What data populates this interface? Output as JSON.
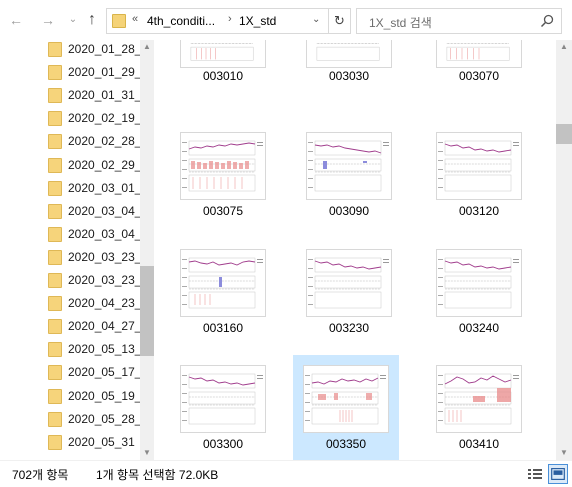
{
  "address_bar": {
    "back_icon": "arrow-left-icon",
    "forward_icon": "arrow-right-icon",
    "up_icon": "arrow-up-icon",
    "overflow": "«",
    "path": [
      "4th_conditi...",
      "1X_std"
    ],
    "separator": "›",
    "search_placeholder": "1X_std 검색"
  },
  "nav_pane": {
    "folders": [
      "2020_01_28_",
      "2020_01_29_",
      "2020_01_31_",
      "2020_02_19_",
      "2020_02_28_",
      "2020_02_29_",
      "2020_03_01_",
      "2020_03_04_",
      "2020_03_04_",
      "2020_03_23_",
      "2020_03_23_",
      "2020_04_23_",
      "2020_04_27_",
      "2020_05_13_",
      "2020_05_17_",
      "2020_05_19_",
      "2020_05_28_",
      "2020_05_31"
    ]
  },
  "files": [
    {
      "name": "003010",
      "variant": "partial",
      "selected": false
    },
    {
      "name": "003030",
      "variant": "partial",
      "selected": false
    },
    {
      "name": "003070",
      "variant": "partial",
      "selected": false
    },
    {
      "name": "003075",
      "variant": "a",
      "selected": false
    },
    {
      "name": "003090",
      "variant": "b",
      "selected": false
    },
    {
      "name": "003120",
      "variant": "c",
      "selected": false
    },
    {
      "name": "003160",
      "variant": "d",
      "selected": false
    },
    {
      "name": "003230",
      "variant": "c",
      "selected": false
    },
    {
      "name": "003240",
      "variant": "c",
      "selected": false
    },
    {
      "name": "003300",
      "variant": "c",
      "selected": false
    },
    {
      "name": "003350",
      "variant": "e",
      "selected": true
    },
    {
      "name": "003410",
      "variant": "f",
      "selected": false
    }
  ],
  "status_bar": {
    "item_count": "702개 항목",
    "selection": "1개 항목 선택함 72.0KB"
  },
  "colors": {
    "folder": "#f6d47b",
    "selection": "#cce8ff",
    "chart_line": "#a03c8c",
    "chart_bar": "#e88a8a",
    "chart_bar_alt": "#8c8cdc"
  }
}
